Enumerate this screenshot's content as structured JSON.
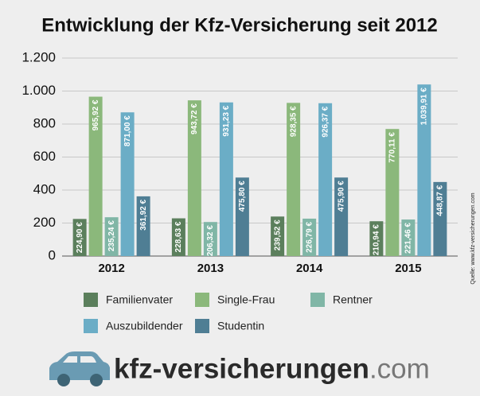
{
  "chart_data": {
    "type": "bar",
    "title": "Entwicklung der Kfz-Versicherung seit 2012",
    "categories": [
      "2012",
      "2013",
      "2014",
      "2015"
    ],
    "series": [
      {
        "name": "Familienvater",
        "color": "#5b7f5c",
        "values": [
          224.9,
          228.63,
          239.52,
          210.94
        ],
        "value_labels": [
          "224,90 €",
          "228,63 €",
          "239,52 €",
          "210,94 €"
        ]
      },
      {
        "name": "Single-Frau",
        "color": "#8bb87b",
        "values": [
          965.92,
          943.72,
          928.35,
          770.11
        ],
        "value_labels": [
          "965,92 €",
          "943,72 €",
          "928,35 €",
          "770,11 €"
        ]
      },
      {
        "name": "Rentner",
        "color": "#80b6a6",
        "values": [
          235.24,
          206.32,
          226.79,
          221.46
        ],
        "value_labels": [
          "235,24 €",
          "206,32 €",
          "226,79 €",
          "221,46 €"
        ]
      },
      {
        "name": "Auszubildender",
        "color": "#6badc6",
        "values": [
          871.0,
          931.23,
          926.37,
          1039.91
        ],
        "value_labels": [
          "871,00 €",
          "931,23 €",
          "926,37 €",
          "1.039,91 €"
        ]
      },
      {
        "name": "Studentin",
        "color": "#4f7e94",
        "values": [
          361.92,
          475.8,
          475.9,
          448.87
        ],
        "value_labels": [
          "361,92 €",
          "475,80 €",
          "475,90 €",
          "448,87 €"
        ]
      }
    ],
    "ylim": [
      0,
      1200
    ],
    "yticks": [
      0,
      200,
      400,
      600,
      800,
      {
        "value": 1000,
        "label": "1.000"
      },
      {
        "value": 1200,
        "label": "1.200"
      }
    ],
    "grid": true,
    "source": "Quelle: www.kfz-versicherungen.com"
  },
  "footer": {
    "brand": "kfz-versicherungen",
    "suffix": ".com"
  }
}
